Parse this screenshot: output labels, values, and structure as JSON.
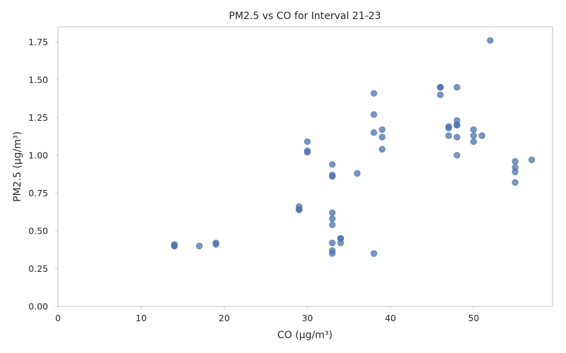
{
  "chart_data": {
    "type": "scatter",
    "title": "PM2.5 vs CO for Interval 21-23",
    "xlabel": "CO (µg/m³)",
    "ylabel": "PM2.5 (µg/m³)",
    "xlim": [
      0,
      59.5
    ],
    "ylim": [
      0,
      1.85
    ],
    "grid": false,
    "x_ticks": [
      0,
      10,
      20,
      30,
      40,
      50
    ],
    "x_tick_labels": [
      "0",
      "10",
      "20",
      "30",
      "40",
      "50"
    ],
    "y_ticks": [
      0,
      0.25,
      0.5,
      0.75,
      1.0,
      1.25,
      1.5,
      1.75
    ],
    "y_tick_labels": [
      "0.00",
      "0.25",
      "0.50",
      "0.75",
      "1.00",
      "1.25",
      "1.50",
      "1.75"
    ],
    "color": "#4c72b0",
    "points": [
      {
        "x": 14,
        "y": 0.41
      },
      {
        "x": 14,
        "y": 0.4
      },
      {
        "x": 14,
        "y": 0.4
      },
      {
        "x": 17,
        "y": 0.4
      },
      {
        "x": 19,
        "y": 0.42
      },
      {
        "x": 19,
        "y": 0.41
      },
      {
        "x": 29,
        "y": 0.66
      },
      {
        "x": 29,
        "y": 0.64
      },
      {
        "x": 29,
        "y": 0.64
      },
      {
        "x": 30,
        "y": 1.09
      },
      {
        "x": 30,
        "y": 1.03
      },
      {
        "x": 30,
        "y": 1.02
      },
      {
        "x": 33,
        "y": 0.94
      },
      {
        "x": 33,
        "y": 0.87
      },
      {
        "x": 33,
        "y": 0.86
      },
      {
        "x": 33,
        "y": 0.62
      },
      {
        "x": 33,
        "y": 0.58
      },
      {
        "x": 33,
        "y": 0.54
      },
      {
        "x": 33,
        "y": 0.42
      },
      {
        "x": 33,
        "y": 0.37
      },
      {
        "x": 33,
        "y": 0.35
      },
      {
        "x": 34,
        "y": 0.45
      },
      {
        "x": 34,
        "y": 0.45
      },
      {
        "x": 34,
        "y": 0.42
      },
      {
        "x": 36,
        "y": 0.88
      },
      {
        "x": 38,
        "y": 1.41
      },
      {
        "x": 38,
        "y": 1.27
      },
      {
        "x": 38,
        "y": 1.15
      },
      {
        "x": 38,
        "y": 0.35
      },
      {
        "x": 39,
        "y": 1.17
      },
      {
        "x": 39,
        "y": 1.12
      },
      {
        "x": 39,
        "y": 1.04
      },
      {
        "x": 46,
        "y": 1.45
      },
      {
        "x": 46,
        "y": 1.45
      },
      {
        "x": 46,
        "y": 1.4
      },
      {
        "x": 47,
        "y": 1.19
      },
      {
        "x": 47,
        "y": 1.18
      },
      {
        "x": 47,
        "y": 1.13
      },
      {
        "x": 48,
        "y": 1.45
      },
      {
        "x": 48,
        "y": 1.23
      },
      {
        "x": 48,
        "y": 1.2
      },
      {
        "x": 48,
        "y": 1.2
      },
      {
        "x": 48,
        "y": 1.12
      },
      {
        "x": 48,
        "y": 1.0
      },
      {
        "x": 50,
        "y": 1.17
      },
      {
        "x": 50,
        "y": 1.13
      },
      {
        "x": 50,
        "y": 1.09
      },
      {
        "x": 51,
        "y": 1.13
      },
      {
        "x": 52,
        "y": 1.76
      },
      {
        "x": 55,
        "y": 0.96
      },
      {
        "x": 55,
        "y": 0.92
      },
      {
        "x": 55,
        "y": 0.89
      },
      {
        "x": 55,
        "y": 0.82
      },
      {
        "x": 57,
        "y": 0.97
      }
    ]
  }
}
